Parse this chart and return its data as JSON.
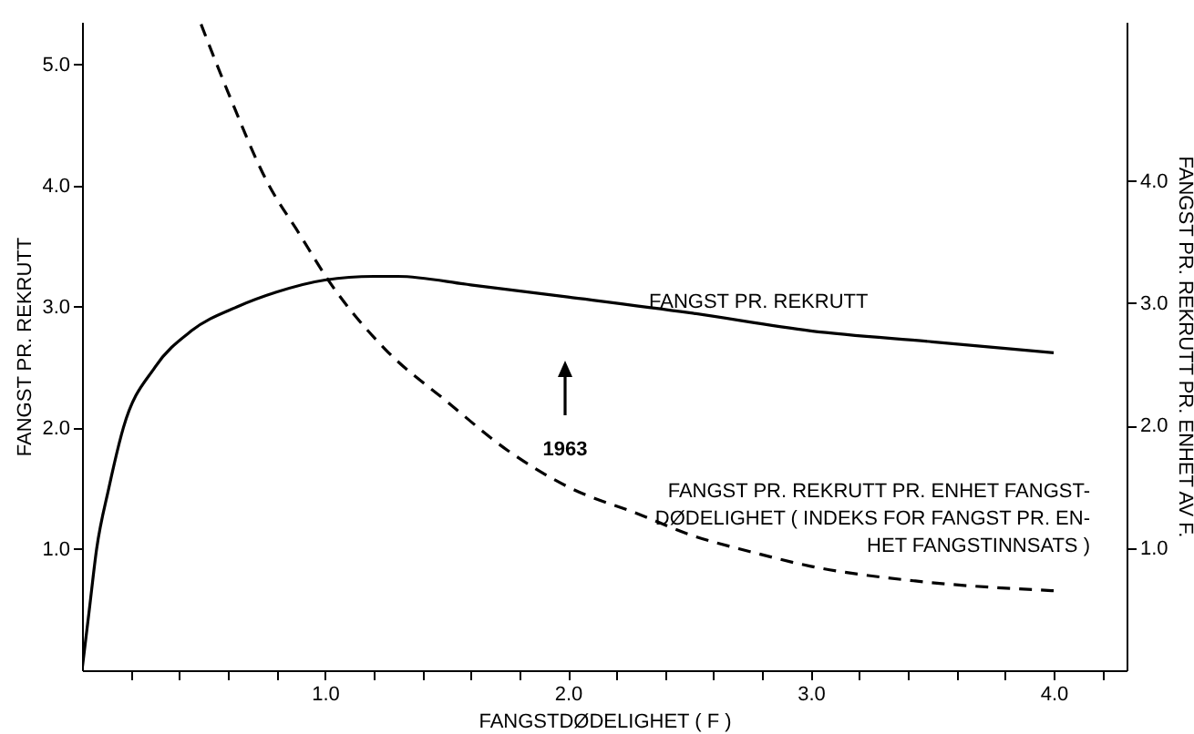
{
  "chart_data": {
    "type": "line",
    "xlabel": "FANGSTDØDELIGHET ( F )",
    "ylabel": "FANGST PR. REKRUTT",
    "y2label": "FANGST PR. REKRUTT PR. ENHET AV F.",
    "xlim": [
      0,
      4.3
    ],
    "ylim": [
      0,
      5.35
    ],
    "y2lim": [
      0,
      5.3
    ],
    "xticks": [
      {
        "value": 0.2,
        "label": null
      },
      {
        "value": 0.4,
        "label": null
      },
      {
        "value": 0.6,
        "label": null
      },
      {
        "value": 0.8,
        "label": null
      },
      {
        "value": 1.0,
        "label": "1.0"
      },
      {
        "value": 1.2,
        "label": null
      },
      {
        "value": 1.4,
        "label": null
      },
      {
        "value": 1.6,
        "label": null
      },
      {
        "value": 1.8,
        "label": null
      },
      {
        "value": 2.0,
        "label": "2.0"
      },
      {
        "value": 2.2,
        "label": null
      },
      {
        "value": 2.4,
        "label": null
      },
      {
        "value": 2.6,
        "label": null
      },
      {
        "value": 2.8,
        "label": null
      },
      {
        "value": 3.0,
        "label": "3.0"
      },
      {
        "value": 3.2,
        "label": null
      },
      {
        "value": 3.4,
        "label": null
      },
      {
        "value": 3.6,
        "label": null
      },
      {
        "value": 3.8,
        "label": null
      },
      {
        "value": 4.0,
        "label": "4.0"
      },
      {
        "value": 4.2,
        "label": null
      }
    ],
    "yticks": [
      {
        "value": 1,
        "label": "1.0"
      },
      {
        "value": 2,
        "label": "2.0"
      },
      {
        "value": 3,
        "label": "3.0"
      },
      {
        "value": 4,
        "label": "4.0"
      },
      {
        "value": 5,
        "label": "5.0"
      }
    ],
    "y2ticks": [
      {
        "value": 1,
        "label": "1.0"
      },
      {
        "value": 2,
        "label": "2.0"
      },
      {
        "value": 3,
        "label": "3.0"
      },
      {
        "value": 4,
        "label": "4.0"
      }
    ],
    "grid": false,
    "series": [
      {
        "name": "FANGST PR. REKRUTT",
        "color": "#000000",
        "line_style": "solid",
        "x": [
          0,
          0.03,
          0.06,
          0.11,
          0.17,
          0.3,
          0.45,
          0.64,
          0.8,
          1.0,
          1.2,
          1.3,
          1.6,
          2.0,
          2.5,
          3.0,
          3.5,
          4.0
        ],
        "values": [
          0,
          0.5,
          1.0,
          1.5,
          2.0,
          2.5,
          2.8,
          3.0,
          3.12,
          3.22,
          3.25,
          3.25,
          3.18,
          3.08,
          2.95,
          2.8,
          2.71,
          2.62
        ]
      },
      {
        "name": "FANGST PR. REKRUTT PR. ENHET FANGST-DØDELIGHET ( INDEKS FOR FANGST PR. EN-HET FANGSTINNSATS )",
        "color": "#000000",
        "line_style": "dashed",
        "axis": "y2",
        "x": [
          0.49,
          0.6,
          0.76,
          0.9,
          1.01,
          1.25,
          1.5,
          1.75,
          2.0,
          2.3,
          2.5,
          2.75,
          3.0,
          3.43,
          4.0
        ],
        "values": [
          5.28,
          4.73,
          4.0,
          3.55,
          3.2,
          2.62,
          2.2,
          1.8,
          1.5,
          1.27,
          1.11,
          0.97,
          0.85,
          0.73,
          0.65
        ]
      }
    ],
    "annotations": [
      "1963"
    ]
  }
}
